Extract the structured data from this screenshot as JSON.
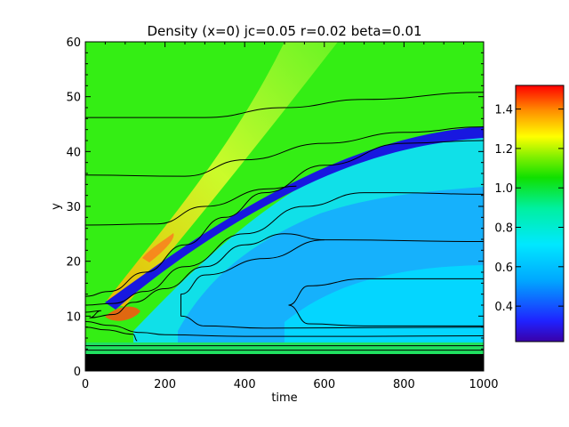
{
  "chart_data": {
    "type": "heatmap",
    "title": "Density (x=0) jc=0.05 r=0.02 beta=0.01",
    "xlabel": "time",
    "ylabel": "y",
    "xlim": [
      0,
      1000
    ],
    "ylim": [
      0,
      60
    ],
    "xticks": [
      "0",
      "200",
      "400",
      "600",
      "800",
      "1000"
    ],
    "yticks": [
      "0",
      "10",
      "20",
      "30",
      "40",
      "50",
      "60"
    ],
    "colorbar": {
      "range": [
        0.22,
        1.52
      ],
      "ticks": [
        "0.4",
        "0.6",
        "0.8",
        "1.0",
        "1.2",
        "1.4"
      ],
      "colormap": "rainbow"
    },
    "contours": [
      {
        "label": "upper-flat",
        "points": [
          [
            0,
            46.2
          ],
          [
            300,
            46.2
          ],
          [
            500,
            48
          ],
          [
            700,
            49.5
          ],
          [
            1000,
            50.8
          ]
        ]
      },
      {
        "label": "upper-mid",
        "points": [
          [
            0,
            35.7
          ],
          [
            250,
            35.5
          ],
          [
            400,
            38.5
          ],
          [
            600,
            41.5
          ],
          [
            800,
            43.5
          ],
          [
            1000,
            44.5
          ]
        ]
      },
      {
        "label": "front-upper",
        "points": [
          [
            0,
            26.6
          ],
          [
            180,
            26.8
          ],
          [
            300,
            30
          ],
          [
            460,
            33.2
          ],
          [
            530,
            33.7
          ]
        ]
      },
      {
        "label": "front-lower",
        "points": [
          [
            0,
            13.6
          ],
          [
            60,
            14.5
          ],
          [
            150,
            18
          ],
          [
            250,
            23
          ],
          [
            350,
            28
          ],
          [
            450,
            32.5
          ],
          [
            600,
            37.5
          ],
          [
            800,
            41.5
          ],
          [
            1000,
            42
          ]
        ]
      },
      {
        "label": "inner-top",
        "points": [
          [
            0,
            12
          ],
          [
            70,
            12.3
          ],
          [
            150,
            14.5
          ],
          [
            250,
            19
          ],
          [
            400,
            25
          ],
          [
            550,
            30
          ],
          [
            700,
            32.5
          ],
          [
            780,
            32.5
          ],
          [
            1000,
            32.2
          ]
        ]
      },
      {
        "label": "inner-left",
        "points": [
          [
            0,
            10.7
          ],
          [
            40,
            11
          ],
          [
            10,
            9.7
          ],
          [
            70,
            10.3
          ],
          [
            120,
            12.5
          ],
          [
            200,
            15
          ],
          [
            300,
            19
          ],
          [
            400,
            23
          ],
          [
            500,
            25
          ],
          [
            600,
            23.9
          ],
          [
            1000,
            23.6
          ]
        ]
      },
      {
        "label": "lower-a",
        "points": [
          [
            0,
            9
          ],
          [
            60,
            8.3
          ],
          [
            140,
            7
          ],
          [
            200,
            6.6
          ],
          [
            400,
            6.3
          ],
          [
            700,
            6.3
          ],
          [
            1000,
            6.4
          ]
        ]
      },
      {
        "label": "lower-b",
        "points": [
          [
            0,
            8
          ],
          [
            50,
            7.5
          ],
          [
            120,
            6.7
          ],
          [
            130,
            5.5
          ]
        ]
      },
      {
        "label": "core-a",
        "points": [
          [
            1000,
            16.8
          ],
          [
            700,
            16.8
          ],
          [
            560,
            15.5
          ],
          [
            510,
            12
          ],
          [
            560,
            8.6
          ],
          [
            700,
            8.2
          ],
          [
            1000,
            8.2
          ]
        ]
      },
      {
        "label": "core-b",
        "points": [
          [
            600,
            23.9
          ],
          [
            450,
            20.5
          ],
          [
            300,
            17.5
          ],
          [
            240,
            14
          ],
          [
            240,
            10
          ],
          [
            300,
            8.2
          ],
          [
            450,
            7.8
          ],
          [
            1000,
            8
          ]
        ]
      }
    ]
  }
}
